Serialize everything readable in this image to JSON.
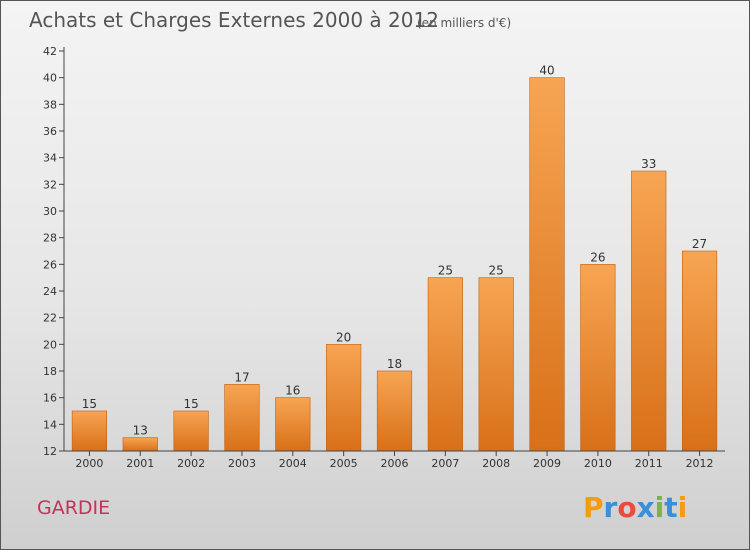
{
  "chart_data": {
    "type": "bar",
    "title": "Achats et Charges Externes 2000 à 2012",
    "subtitle": "(en milliers d'€)",
    "categories": [
      "2000",
      "2001",
      "2002",
      "2003",
      "2004",
      "2005",
      "2006",
      "2007",
      "2008",
      "2009",
      "2010",
      "2011",
      "2012"
    ],
    "values": [
      15,
      13,
      15,
      17,
      16,
      20,
      18,
      25,
      25,
      40,
      26,
      33,
      27
    ],
    "ylim": [
      12,
      42
    ],
    "yticks": [
      12,
      14,
      16,
      18,
      20,
      22,
      24,
      26,
      28,
      30,
      32,
      34,
      36,
      38,
      40,
      42
    ],
    "xlabel": "",
    "ylabel": "",
    "grid": false,
    "legend": "none",
    "colors": {
      "bar_top": "#f7a553",
      "bar_bottom": "#d87018",
      "bar_edge": "#c06010"
    }
  },
  "commune": {
    "name": "GARDIE",
    "color": "#c8305a"
  },
  "logo": {
    "text": "Proxiti",
    "letters": [
      "P",
      "r",
      "o",
      "x",
      "i",
      "t",
      "i"
    ],
    "colors": [
      "#f39c12",
      "#3a8fd6",
      "#e74c3c",
      "#3a8fd6",
      "#7cb342",
      "#3a8fd6",
      "#f39c12"
    ]
  }
}
